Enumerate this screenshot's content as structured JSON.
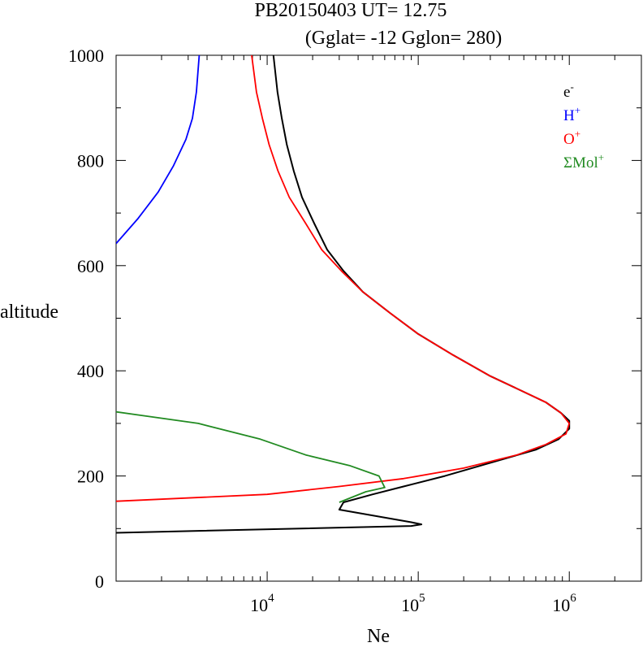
{
  "chart_data": {
    "type": "line",
    "title_line1": "PB20150403   UT=  12.75",
    "title_line2": "(Gglat= -12   Gglon=  280)",
    "xlabel": "Ne",
    "ylabel": "altitude",
    "x_scale": "log",
    "xlim": [
      1000,
      3000000
    ],
    "ylim": [
      0,
      1000
    ],
    "y_ticks": [
      0,
      200,
      400,
      600,
      800,
      1000
    ],
    "y_tick_labels": [
      "0",
      "200",
      "400",
      "600",
      "800",
      "1000"
    ],
    "x_ticks": [
      10000,
      100000,
      1000000
    ],
    "x_tick_labels": [
      {
        "base": "10",
        "exp": "4"
      },
      {
        "base": "10",
        "exp": "5"
      },
      {
        "base": "10",
        "exp": "6"
      }
    ],
    "grid": false,
    "legend_position": "top-right",
    "series": [
      {
        "name": "e",
        "sup": "-",
        "color": "#000000",
        "points": [
          [
            1000,
            92
          ],
          [
            90000,
            105
          ],
          [
            105000,
            108
          ],
          [
            90000,
            112
          ],
          [
            30000,
            136
          ],
          [
            32000,
            150
          ],
          [
            50000,
            165
          ],
          [
            80000,
            180
          ],
          [
            150000,
            200
          ],
          [
            300000,
            225
          ],
          [
            600000,
            250
          ],
          [
            850000,
            270
          ],
          [
            1000000,
            290
          ],
          [
            1000000,
            305
          ],
          [
            880000,
            320
          ],
          [
            700000,
            340
          ],
          [
            500000,
            360
          ],
          [
            300000,
            390
          ],
          [
            170000,
            430
          ],
          [
            100000,
            470
          ],
          [
            65000,
            510
          ],
          [
            43000,
            550
          ],
          [
            32000,
            590
          ],
          [
            25000,
            630
          ],
          [
            20500,
            680
          ],
          [
            17000,
            730
          ],
          [
            15000,
            780
          ],
          [
            13500,
            830
          ],
          [
            12500,
            880
          ],
          [
            11700,
            930
          ],
          [
            11000,
            1000
          ]
        ]
      },
      {
        "name": "H",
        "sup": "+",
        "color": "#0000ff",
        "points": [
          [
            1000,
            642
          ],
          [
            1400,
            690
          ],
          [
            1900,
            740
          ],
          [
            2400,
            790
          ],
          [
            2900,
            840
          ],
          [
            3200,
            880
          ],
          [
            3400,
            930
          ],
          [
            3550,
            1000
          ]
        ]
      },
      {
        "name": "O",
        "sup": "+",
        "color": "#ff0000",
        "points": [
          [
            1000,
            152
          ],
          [
            10000,
            165
          ],
          [
            30000,
            180
          ],
          [
            80000,
            195
          ],
          [
            200000,
            215
          ],
          [
            450000,
            240
          ],
          [
            700000,
            260
          ],
          [
            950000,
            280
          ],
          [
            1000000,
            300
          ],
          [
            880000,
            320
          ],
          [
            700000,
            340
          ],
          [
            500000,
            360
          ],
          [
            300000,
            390
          ],
          [
            170000,
            430
          ],
          [
            100000,
            470
          ],
          [
            65000,
            510
          ],
          [
            43000,
            550
          ],
          [
            31000,
            590
          ],
          [
            23000,
            630
          ],
          [
            18000,
            680
          ],
          [
            14000,
            730
          ],
          [
            11800,
            780
          ],
          [
            10300,
            830
          ],
          [
            9300,
            880
          ],
          [
            8500,
            930
          ],
          [
            7900,
            1000
          ]
        ]
      },
      {
        "name": "ΣMol",
        "sup": "+",
        "color": "#228b22",
        "points": [
          [
            1000,
            322
          ],
          [
            3500,
            300
          ],
          [
            9000,
            270
          ],
          [
            18000,
            240
          ],
          [
            35000,
            220
          ],
          [
            55000,
            200
          ],
          [
            60000,
            178
          ],
          [
            45000,
            170
          ],
          [
            30000,
            150
          ]
        ]
      }
    ]
  }
}
